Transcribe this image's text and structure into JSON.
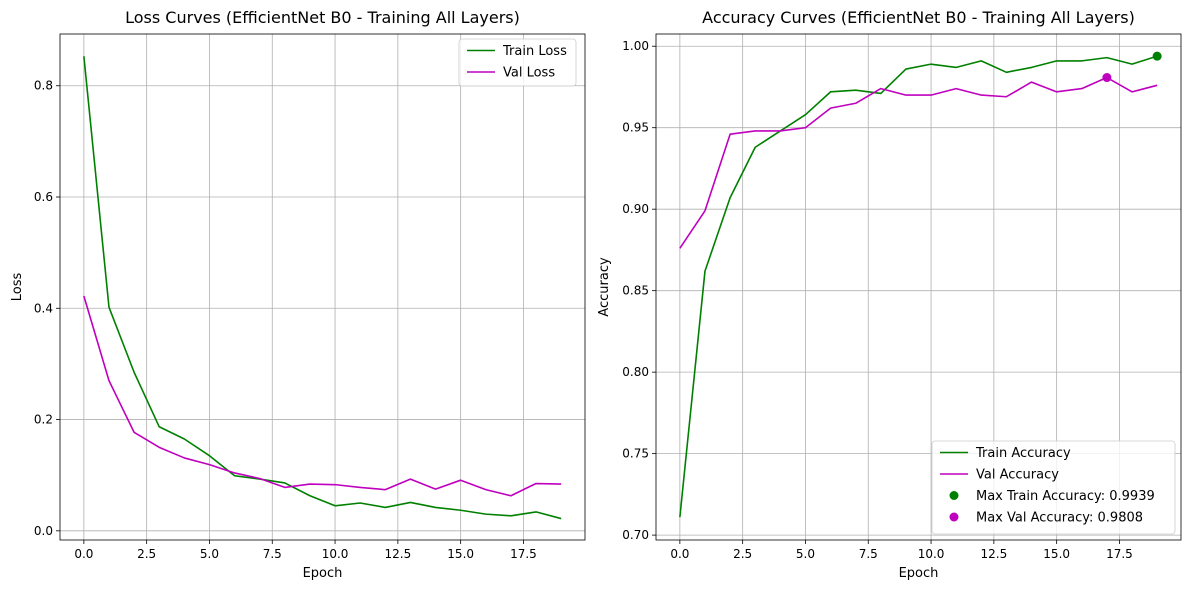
{
  "colors": {
    "train": "#008000",
    "val": "#bf00bf"
  },
  "chart_data": [
    {
      "type": "line",
      "title": "Loss Curves (EfficientNet B0 - Training All Layers)",
      "xlabel": "Epoch",
      "ylabel": "Loss",
      "xlim": [
        -0.95,
        19.95
      ],
      "ylim": [
        -0.0165,
        0.893
      ],
      "xticks": [
        0,
        2.5,
        5,
        7.5,
        10,
        12.5,
        15,
        17.5
      ],
      "xtick_labels": [
        "0.0",
        "2.5",
        "5.0",
        "7.5",
        "10.0",
        "12.5",
        "15.0",
        "17.5"
      ],
      "yticks": [
        0,
        0.2,
        0.4,
        0.6,
        0.8
      ],
      "ytick_labels": [
        "0.0",
        "0.2",
        "0.4",
        "0.6",
        "0.8"
      ],
      "grid": true,
      "legend_position": "upper right",
      "x": [
        0,
        1,
        2,
        3,
        4,
        5,
        6,
        7,
        8,
        9,
        10,
        11,
        12,
        13,
        14,
        15,
        16,
        17,
        18,
        19
      ],
      "series": [
        {
          "name": "Train Loss",
          "color_key": "train",
          "values": [
            0.853,
            0.402,
            0.285,
            0.187,
            0.165,
            0.135,
            0.099,
            0.093,
            0.086,
            0.063,
            0.045,
            0.05,
            0.042,
            0.051,
            0.042,
            0.037,
            0.03,
            0.027,
            0.034,
            0.022
          ]
        },
        {
          "name": "Val Loss",
          "color_key": "val",
          "values": [
            0.422,
            0.27,
            0.177,
            0.15,
            0.131,
            0.119,
            0.104,
            0.094,
            0.078,
            0.084,
            0.083,
            0.078,
            0.074,
            0.093,
            0.075,
            0.091,
            0.074,
            0.063,
            0.085,
            0.084
          ]
        }
      ]
    },
    {
      "type": "line",
      "title": "Accuracy Curves (EfficientNet B0 - Training All Layers)",
      "xlabel": "Epoch",
      "ylabel": "Accuracy",
      "xlim": [
        -0.95,
        19.95
      ],
      "ylim": [
        0.697,
        1.0075
      ],
      "xticks": [
        0,
        2.5,
        5,
        7.5,
        10,
        12.5,
        15,
        17.5
      ],
      "xtick_labels": [
        "0.0",
        "2.5",
        "5.0",
        "7.5",
        "10.0",
        "12.5",
        "15.0",
        "17.5"
      ],
      "yticks": [
        0.7,
        0.75,
        0.8,
        0.85,
        0.9,
        0.95,
        1.0
      ],
      "ytick_labels": [
        "0.70",
        "0.75",
        "0.80",
        "0.85",
        "0.90",
        "0.95",
        "1.00"
      ],
      "grid": true,
      "legend_position": "lower right",
      "x": [
        0,
        1,
        2,
        3,
        4,
        5,
        6,
        7,
        8,
        9,
        10,
        11,
        12,
        13,
        14,
        15,
        16,
        17,
        18,
        19
      ],
      "series": [
        {
          "name": "Train Accuracy",
          "color_key": "train",
          "values": [
            0.711,
            0.862,
            0.907,
            0.938,
            0.948,
            0.958,
            0.972,
            0.973,
            0.971,
            0.986,
            0.989,
            0.987,
            0.991,
            0.984,
            0.987,
            0.991,
            0.991,
            0.993,
            0.989,
            0.9939
          ]
        },
        {
          "name": "Val Accuracy",
          "color_key": "val",
          "values": [
            0.876,
            0.899,
            0.946,
            0.948,
            0.948,
            0.95,
            0.962,
            0.965,
            0.974,
            0.97,
            0.97,
            0.974,
            0.97,
            0.969,
            0.978,
            0.972,
            0.974,
            0.9808,
            0.972,
            0.976
          ]
        }
      ],
      "markers": [
        {
          "name": "Max Train Accuracy: 0.9939",
          "x": 19,
          "y": 0.9939,
          "color_key": "train"
        },
        {
          "name": "Max Val Accuracy: 0.9808",
          "x": 17,
          "y": 0.9808,
          "color_key": "val"
        }
      ]
    }
  ]
}
